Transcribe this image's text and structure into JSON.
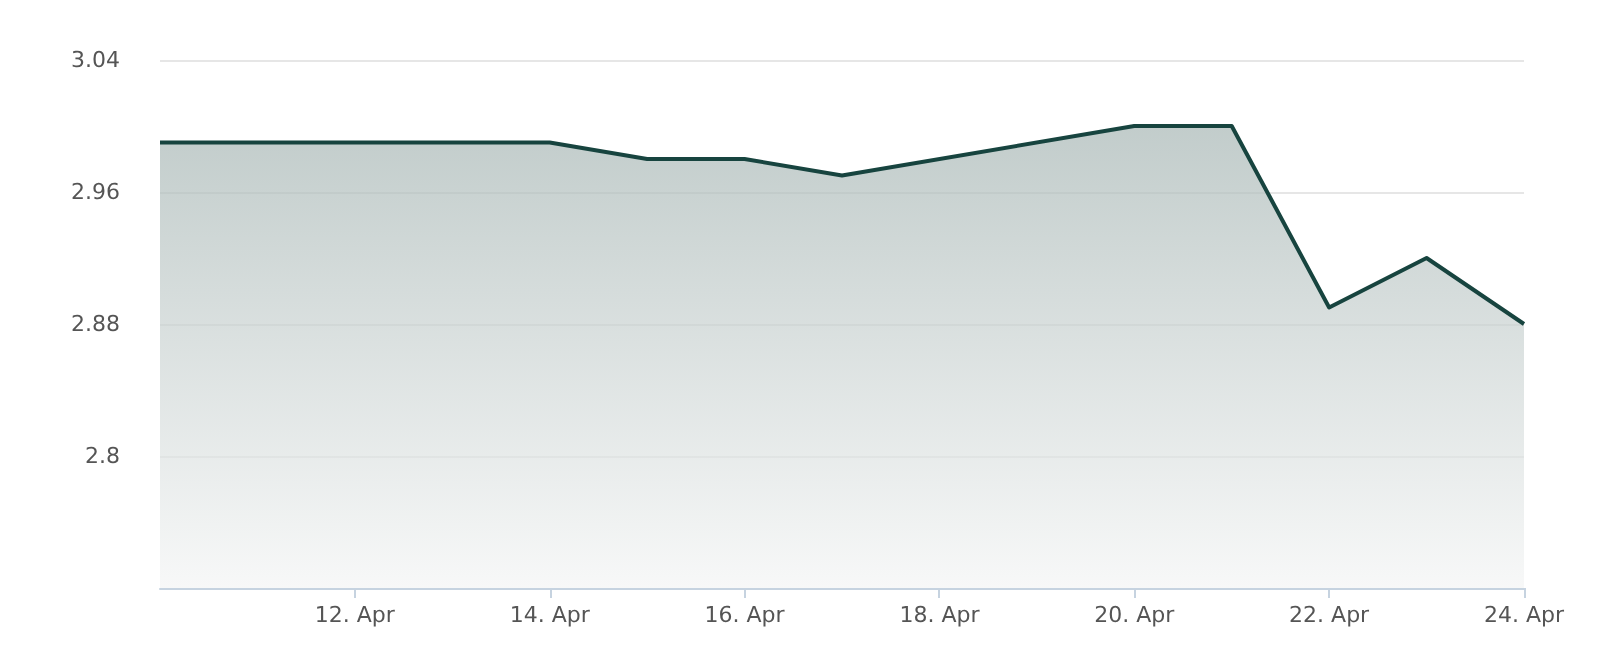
{
  "chart_data": {
    "type": "area",
    "x": [
      "--04-10",
      "--04-14",
      "--04-15",
      "--04-16",
      "--04-17",
      "--04-20",
      "--04-21",
      "--04-22",
      "--04-23",
      "--04-24"
    ],
    "series": [
      {
        "color": "#17443f",
        "values": [
          2.99,
          2.99,
          2.98,
          2.98,
          2.97,
          3.0,
          3.0,
          2.89,
          2.92,
          2.88
        ]
      }
    ],
    "xlim": [
      "--04-10",
      "--04-24"
    ],
    "xticks": [
      {
        "value": "--04-12",
        "label": "12. Apr"
      },
      {
        "value": "--04-14",
        "label": "14. Apr"
      },
      {
        "value": "--04-16",
        "label": "16. Apr"
      },
      {
        "value": "--04-18",
        "label": "18. Apr"
      },
      {
        "value": "--04-20",
        "label": "20. Apr"
      },
      {
        "value": "--04-22",
        "label": "22. Apr"
      },
      {
        "value": "--04-24",
        "label": "24. Apr"
      }
    ],
    "ylim": [
      2.72,
      3.04
    ],
    "yticks": [
      2.8,
      2.88,
      2.96,
      3.04
    ],
    "grid": "y"
  }
}
